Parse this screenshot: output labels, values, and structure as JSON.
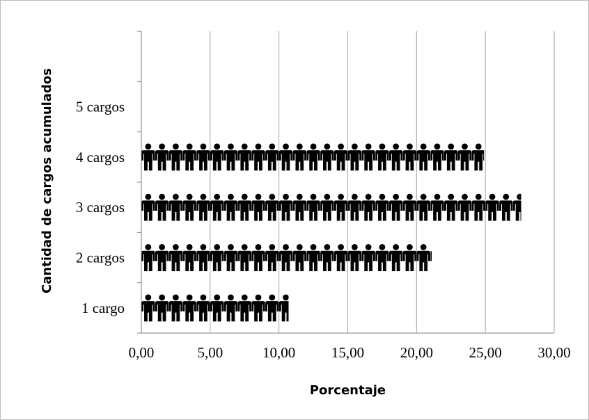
{
  "chart_data": {
    "type": "bar",
    "style": "pictograph",
    "orientation": "horizontal",
    "xlabel": "Porcentaje",
    "ylabel": "Cantidad de cargos acumulados",
    "categories": [
      "1 cargo",
      "2 cargos",
      "3 cargos",
      "4 cargos",
      "5 cargos"
    ],
    "values": [
      10.7,
      21.1,
      27.6,
      24.9,
      0
    ],
    "xlim": [
      0,
      30
    ],
    "xticks": [
      "0,00",
      "5,00",
      "10,00",
      "15,00",
      "20,00",
      "25,00",
      "30,00"
    ],
    "grid": true,
    "legend": "none",
    "icon": "person-icon",
    "icon_unit": 1,
    "colors": {
      "icon": "#000000",
      "grid": "#a6a6a6",
      "axis": "#7f7f7f"
    }
  }
}
